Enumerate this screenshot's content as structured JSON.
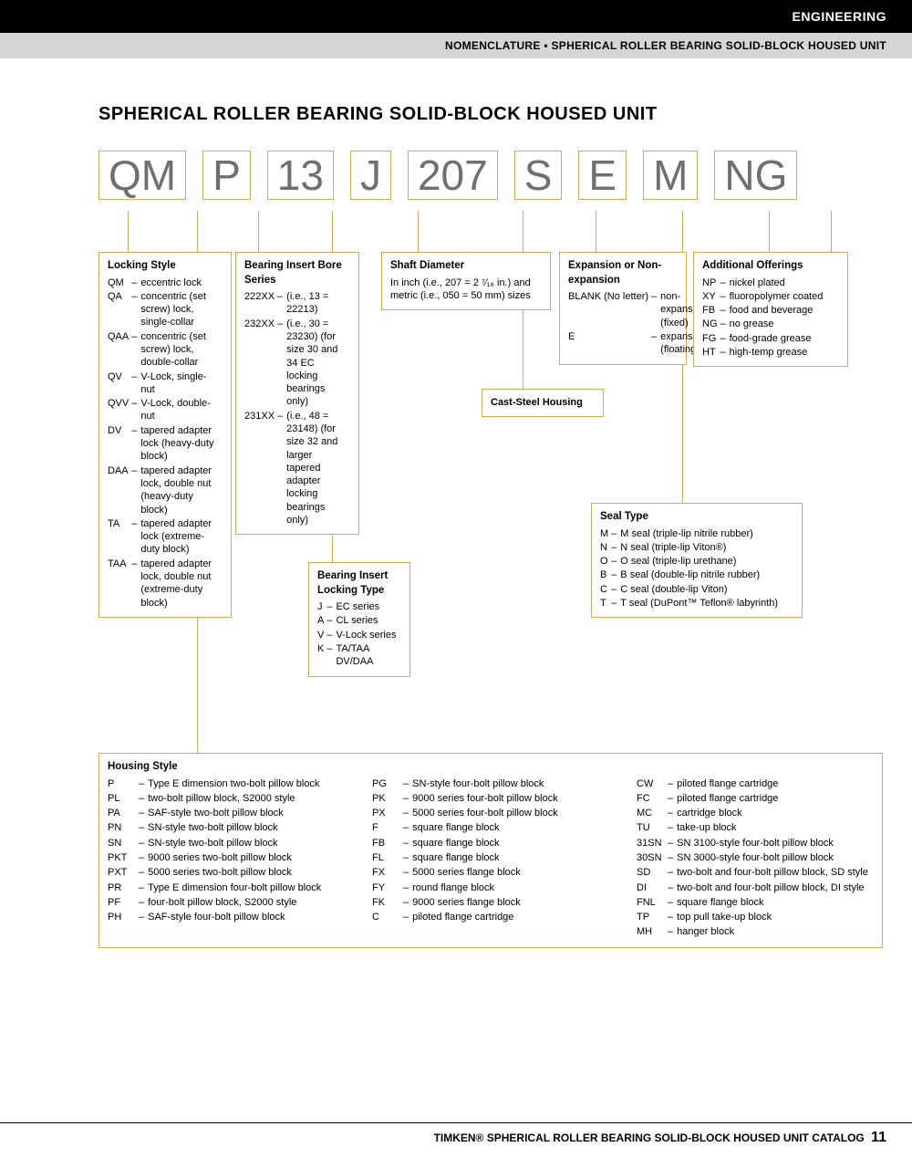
{
  "header": {
    "topbar": "ENGINEERING",
    "subbar": "NOMENCLATURE • SPHERICAL ROLLER BEARING SOLID-BLOCK HOUSED UNIT"
  },
  "title": "SPHERICAL ROLLER BEARING SOLID-BLOCK HOUSED UNIT",
  "codeParts": [
    "QM",
    "P",
    "13",
    "J",
    "207",
    "S",
    "E",
    "M",
    "NG"
  ],
  "legend": {
    "lockingStyle": {
      "title": "Locking Style",
      "items": [
        [
          "QM",
          "eccentric lock"
        ],
        [
          "QA",
          "concentric (set screw) lock, single-collar"
        ],
        [
          "QAA",
          "concentric (set screw) lock, double-collar"
        ],
        [
          "QV",
          "V-Lock, single-nut"
        ],
        [
          "QVV",
          "V-Lock, double-nut"
        ],
        [
          "DV",
          "tapered adapter lock (heavy-duty block)"
        ],
        [
          "DAA",
          "tapered adapter lock, double nut (heavy-duty block)"
        ],
        [
          "TA",
          "tapered adapter lock (extreme-duty block)"
        ],
        [
          "TAA",
          "tapered adapter lock, double nut (extreme-duty block)"
        ]
      ]
    },
    "boreSeries": {
      "title": "Bearing Insert Bore Series",
      "items": [
        [
          "222XX",
          "(i.e., 13 = 22213)"
        ],
        [
          "232XX",
          "(i.e., 30 = 23230) (for size 30 and 34 EC locking bearings only)"
        ],
        [
          "231XX",
          "(i.e., 48 = 23148) (for size 32 and larger tapered adapter locking bearings only)"
        ]
      ]
    },
    "lockingType": {
      "title": "Bearing Insert Locking Type",
      "items": [
        [
          "J",
          "EC series"
        ],
        [
          "A",
          "CL series"
        ],
        [
          "V",
          "V-Lock series"
        ],
        [
          "K",
          "TA/TAA DV/DAA"
        ]
      ]
    },
    "shaftDiameter": {
      "title": "Shaft Diameter",
      "text": "In inch (i.e., 207 = 2 ⁷⁄₁₆ in.) and metric (i.e., 050 = 50 mm) sizes"
    },
    "castSteel": "Cast-Steel Housing",
    "expansion": {
      "title": "Expansion or Non-expansion",
      "items": [
        [
          "BLANK (No letter)",
          "non-expansion (fixed)"
        ],
        [
          "E",
          "expansion (floating)"
        ]
      ]
    },
    "sealType": {
      "title": "Seal Type",
      "items": [
        [
          "M",
          "M seal (triple-lip nitrile rubber)"
        ],
        [
          "N",
          "N seal (triple-lip Viton®)"
        ],
        [
          "O",
          "O seal (triple-lip urethane)"
        ],
        [
          "B",
          "B seal (double-lip nitrile rubber)"
        ],
        [
          "C",
          "C seal (double-lip Viton)"
        ],
        [
          "T",
          "T seal (DuPont™ Teflon® labyrinth)"
        ]
      ]
    },
    "additional": {
      "title": "Additional Offerings",
      "items": [
        [
          "NP",
          "nickel plated"
        ],
        [
          "XY",
          "fluoropolymer coated"
        ],
        [
          "FB",
          "food and beverage"
        ],
        [
          "NG",
          "no grease"
        ],
        [
          "FG",
          "food-grade grease"
        ],
        [
          "HT",
          "high-temp grease"
        ]
      ]
    },
    "housingStyle": {
      "title": "Housing Style",
      "col1": [
        [
          "P",
          "Type E dimension two-bolt pillow block"
        ],
        [
          "PL",
          "two-bolt pillow block, S2000 style"
        ],
        [
          "PA",
          "SAF-style two-bolt pillow block"
        ],
        [
          "PN",
          "SN-style two-bolt pillow block"
        ],
        [
          "SN",
          "SN-style two-bolt pillow block"
        ],
        [
          "PKT",
          "9000 series two-bolt pillow block"
        ],
        [
          "PXT",
          "5000 series two-bolt pillow block"
        ],
        [
          "PR",
          "Type E dimension four-bolt pillow block"
        ],
        [
          "PF",
          "four-bolt pillow block, S2000 style"
        ],
        [
          "PH",
          "SAF-style four-bolt pillow block"
        ]
      ],
      "col2": [
        [
          "PG",
          "SN-style four-bolt pillow block"
        ],
        [
          "PK",
          "9000 series four-bolt pillow block"
        ],
        [
          "PX",
          "5000 series four-bolt pillow block"
        ],
        [
          "F",
          "square flange block"
        ],
        [
          "FB",
          "square flange block"
        ],
        [
          "FL",
          "square flange block"
        ],
        [
          "FX",
          "5000 series flange block"
        ],
        [
          "FY",
          "round flange block"
        ],
        [
          "FK",
          "9000 series flange block"
        ],
        [
          "C",
          "piloted flange cartridge"
        ]
      ],
      "col3": [
        [
          "CW",
          "piloted flange cartridge"
        ],
        [
          "FC",
          "piloted flange cartridge"
        ],
        [
          "MC",
          "cartridge block"
        ],
        [
          "TU",
          "take-up block"
        ],
        [
          "31SN",
          "SN 3100-style four-bolt pillow block"
        ],
        [
          "30SN",
          "SN 3000-style four-bolt pillow block"
        ],
        [
          "SD",
          "two-bolt and four-bolt pillow block, SD style"
        ],
        [
          "DI",
          "two-bolt and four-bolt pillow block, DI style"
        ],
        [
          "FNL",
          "square flange block"
        ],
        [
          "TP",
          "top pull take-up block"
        ],
        [
          "MH",
          "hanger block"
        ]
      ]
    }
  },
  "footer": {
    "text": "TIMKEN® SPHERICAL ROLLER BEARING SOLID-BLOCK HOUSED UNIT CATALOG",
    "page": "11"
  },
  "colors": {
    "accent": "#d8a85a",
    "codeText": "#6f6f6f"
  }
}
